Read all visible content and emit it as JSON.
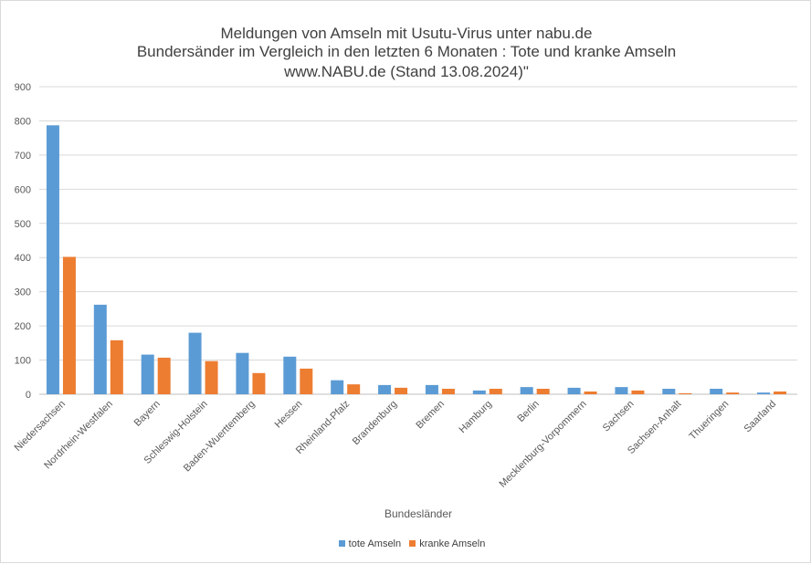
{
  "chart_data": {
    "type": "bar",
    "title": [
      "Meldungen von Amseln mit Usutu-Virus unter nabu.de",
      "Bundersänder im Vergleich in den letzten 6 Monaten : Tote und kranke Amseln",
      "www.NABU.de (Stand 13.08.2024)\""
    ],
    "xlabel": "Bundesländer",
    "ylabel": "",
    "ylim": [
      0,
      900
    ],
    "yticks": [
      0,
      100,
      200,
      300,
      400,
      500,
      600,
      700,
      800,
      900
    ],
    "grid": true,
    "legend": "bottom",
    "categories": [
      "Niedersachsen",
      "Nordrhein-Westfalen",
      "Bayern",
      "Schleswig-Holstein",
      "Baden-Wuerttemberg",
      "Hessen",
      "Rheinland-Pfalz",
      "Brandenburg",
      "Bremen",
      "Hamburg",
      "Berlin",
      "Mecklenburg-Vorpommern",
      "Sachsen",
      "Sachsen-Anhalt",
      "Thueringen",
      "Saarland"
    ],
    "series": [
      {
        "name": "tote Amseln",
        "color": "#5b9bd5",
        "values": [
          787,
          262,
          116,
          180,
          121,
          110,
          41,
          27,
          27,
          11,
          21,
          19,
          21,
          16,
          16,
          5
        ]
      },
      {
        "name": "kranke Amseln",
        "color": "#ed7d31",
        "values": [
          402,
          158,
          107,
          97,
          62,
          75,
          29,
          19,
          16,
          16,
          16,
          8,
          11,
          3,
          5,
          8
        ]
      }
    ]
  }
}
